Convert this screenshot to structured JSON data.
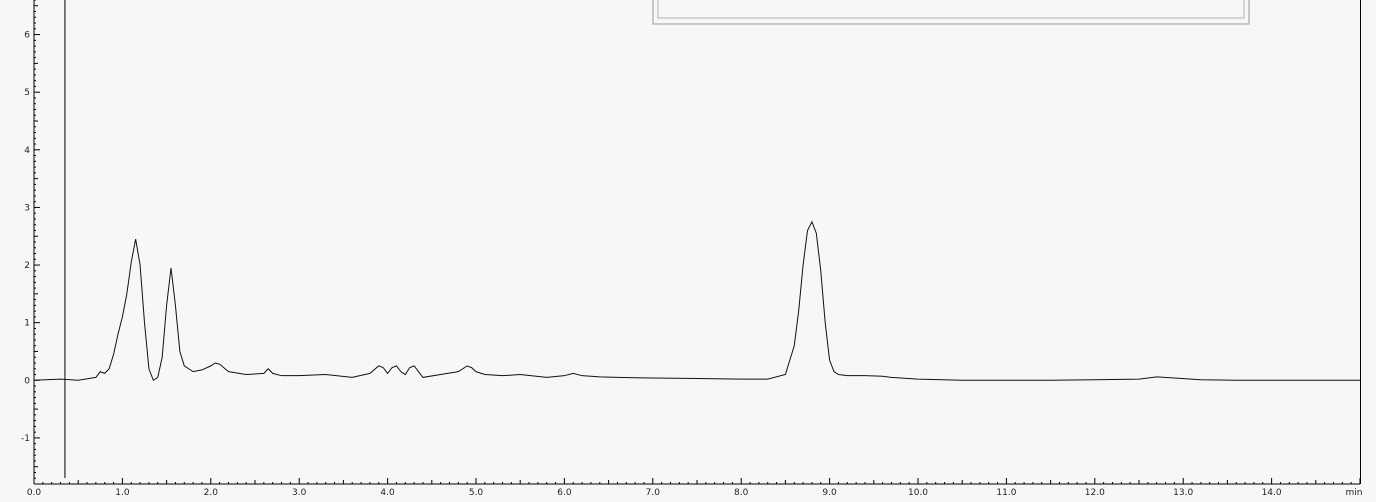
{
  "chart_data": {
    "type": "line",
    "xlabel": "min",
    "ylabel": "",
    "xlim": [
      0.0,
      15.0
    ],
    "ylim": [
      -1.8,
      6.6
    ],
    "x_ticks": [
      0,
      1,
      2,
      3,
      4,
      5,
      6,
      7,
      8,
      9,
      10,
      11,
      12,
      13,
      14
    ],
    "x_tick_labels": [
      "0.0",
      "1.0",
      "2.0",
      "3.0",
      "4.0",
      "5.0",
      "6.0",
      "7.0",
      "8.0",
      "9.0",
      "10.0",
      "11.0",
      "12.0",
      "13.0",
      "14.0"
    ],
    "y_ticks": [
      -1,
      0,
      1,
      2,
      3,
      4,
      5,
      6
    ],
    "y_tick_labels": [
      "-1",
      "0",
      "1",
      "2",
      "3",
      "4",
      "5",
      "6"
    ],
    "marker_line_x": 0.35,
    "grid": false,
    "series": [
      {
        "x": [
          0.0,
          0.3,
          0.5,
          0.7,
          0.75,
          0.8,
          0.85,
          0.9,
          0.95,
          1.0,
          1.05,
          1.1,
          1.15,
          1.2,
          1.25,
          1.3,
          1.35,
          1.4,
          1.45,
          1.5,
          1.55,
          1.6,
          1.65,
          1.7,
          1.75,
          1.8,
          1.9,
          2.0,
          2.05,
          2.1,
          2.2,
          2.4,
          2.6,
          2.65,
          2.7,
          2.8,
          3.0,
          3.3,
          3.6,
          3.8,
          3.9,
          3.95,
          4.0,
          4.05,
          4.1,
          4.15,
          4.2,
          4.25,
          4.3,
          4.35,
          4.4,
          4.6,
          4.8,
          4.9,
          4.95,
          5.0,
          5.1,
          5.3,
          5.5,
          5.8,
          6.0,
          6.1,
          6.2,
          6.4,
          6.6,
          7.0,
          7.5,
          8.0,
          8.3,
          8.5,
          8.6,
          8.65,
          8.7,
          8.75,
          8.8,
          8.85,
          8.9,
          8.95,
          9.0,
          9.05,
          9.1,
          9.2,
          9.4,
          9.6,
          9.7,
          10.0,
          10.5,
          11.0,
          11.5,
          12.0,
          12.5,
          12.7,
          12.9,
          13.2,
          13.6,
          14.0,
          14.5,
          15.0
        ],
        "y": [
          0.0,
          0.02,
          0.0,
          0.05,
          0.15,
          0.12,
          0.2,
          0.45,
          0.8,
          1.1,
          1.5,
          2.05,
          2.45,
          2.0,
          1.0,
          0.2,
          0.0,
          0.05,
          0.4,
          1.3,
          1.95,
          1.3,
          0.5,
          0.25,
          0.2,
          0.15,
          0.18,
          0.25,
          0.3,
          0.28,
          0.15,
          0.1,
          0.12,
          0.2,
          0.12,
          0.08,
          0.08,
          0.1,
          0.05,
          0.12,
          0.25,
          0.22,
          0.12,
          0.22,
          0.25,
          0.15,
          0.1,
          0.22,
          0.25,
          0.15,
          0.05,
          0.1,
          0.15,
          0.25,
          0.22,
          0.15,
          0.1,
          0.08,
          0.1,
          0.05,
          0.08,
          0.12,
          0.08,
          0.06,
          0.05,
          0.04,
          0.03,
          0.02,
          0.02,
          0.1,
          0.6,
          1.2,
          2.0,
          2.6,
          2.75,
          2.55,
          1.9,
          1.0,
          0.35,
          0.15,
          0.1,
          0.08,
          0.08,
          0.07,
          0.05,
          0.02,
          0.0,
          0.0,
          0.0,
          0.01,
          0.02,
          0.06,
          0.04,
          0.01,
          0.0,
          0.0,
          0.0,
          0.0
        ]
      }
    ]
  }
}
